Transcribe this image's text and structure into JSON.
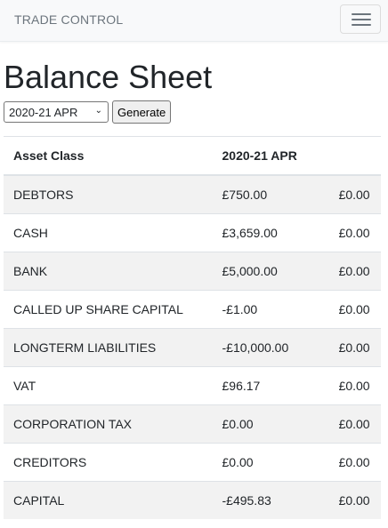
{
  "navbar": {
    "brand": "TRADE CONTROL",
    "toggler_icon": "hamburger-icon"
  },
  "page": {
    "title": "Balance Sheet"
  },
  "controls": {
    "period_selected": "2020-21 APR",
    "generate_label": "Generate"
  },
  "table": {
    "headers": {
      "asset_class": "Asset Class",
      "period": "2020-21 APR",
      "extra": ""
    },
    "rows": [
      {
        "asset_class": "DEBTORS",
        "value": "£750.00",
        "value2": "£0.00"
      },
      {
        "asset_class": "CASH",
        "value": "£3,659.00",
        "value2": "£0.00"
      },
      {
        "asset_class": "BANK",
        "value": "£5,000.00",
        "value2": "£0.00"
      },
      {
        "asset_class": "CALLED UP SHARE CAPITAL",
        "value": "-£1.00",
        "value2": "£0.00"
      },
      {
        "asset_class": "LONGTERM LIABILITIES",
        "value": "-£10,000.00",
        "value2": "£0.00"
      },
      {
        "asset_class": "VAT",
        "value": "£96.17",
        "value2": "£0.00"
      },
      {
        "asset_class": "CORPORATION TAX",
        "value": "£0.00",
        "value2": "£0.00"
      },
      {
        "asset_class": "CREDITORS",
        "value": "£0.00",
        "value2": "£0.00"
      },
      {
        "asset_class": "CAPITAL",
        "value": "-£495.83",
        "value2": "£0.00"
      }
    ]
  },
  "colors": {
    "navbar_bg": "#f8f9fa",
    "stripe": "#f2f2f2",
    "border": "#dee2e6"
  }
}
